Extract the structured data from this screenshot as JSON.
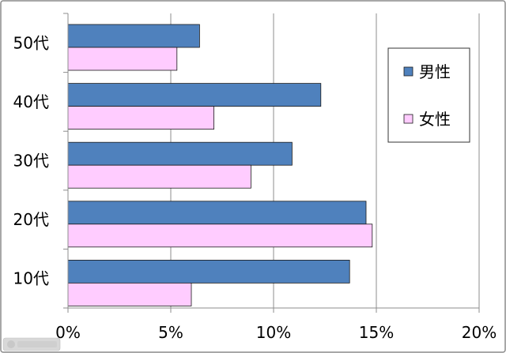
{
  "chart_data": {
    "type": "bar",
    "orientation": "horizontal",
    "categories": [
      "50代",
      "40代",
      "30代",
      "20代",
      "10代"
    ],
    "series": [
      {
        "name": "男性",
        "color": "#4f81bd",
        "values": [
          6.4,
          12.3,
          10.9,
          14.5,
          13.7
        ]
      },
      {
        "name": "女性",
        "color": "#ffccff",
        "values": [
          5.3,
          7.1,
          8.9,
          14.8,
          6.0
        ]
      }
    ],
    "xlim": [
      0,
      20
    ],
    "xticks": [
      "0%",
      "5%",
      "10%",
      "15%",
      "20%"
    ],
    "xtick_values": [
      0,
      5,
      10,
      15,
      20
    ],
    "grid": true,
    "legend_placement": "top-right"
  },
  "watermark_icon": "famitsu-logo"
}
